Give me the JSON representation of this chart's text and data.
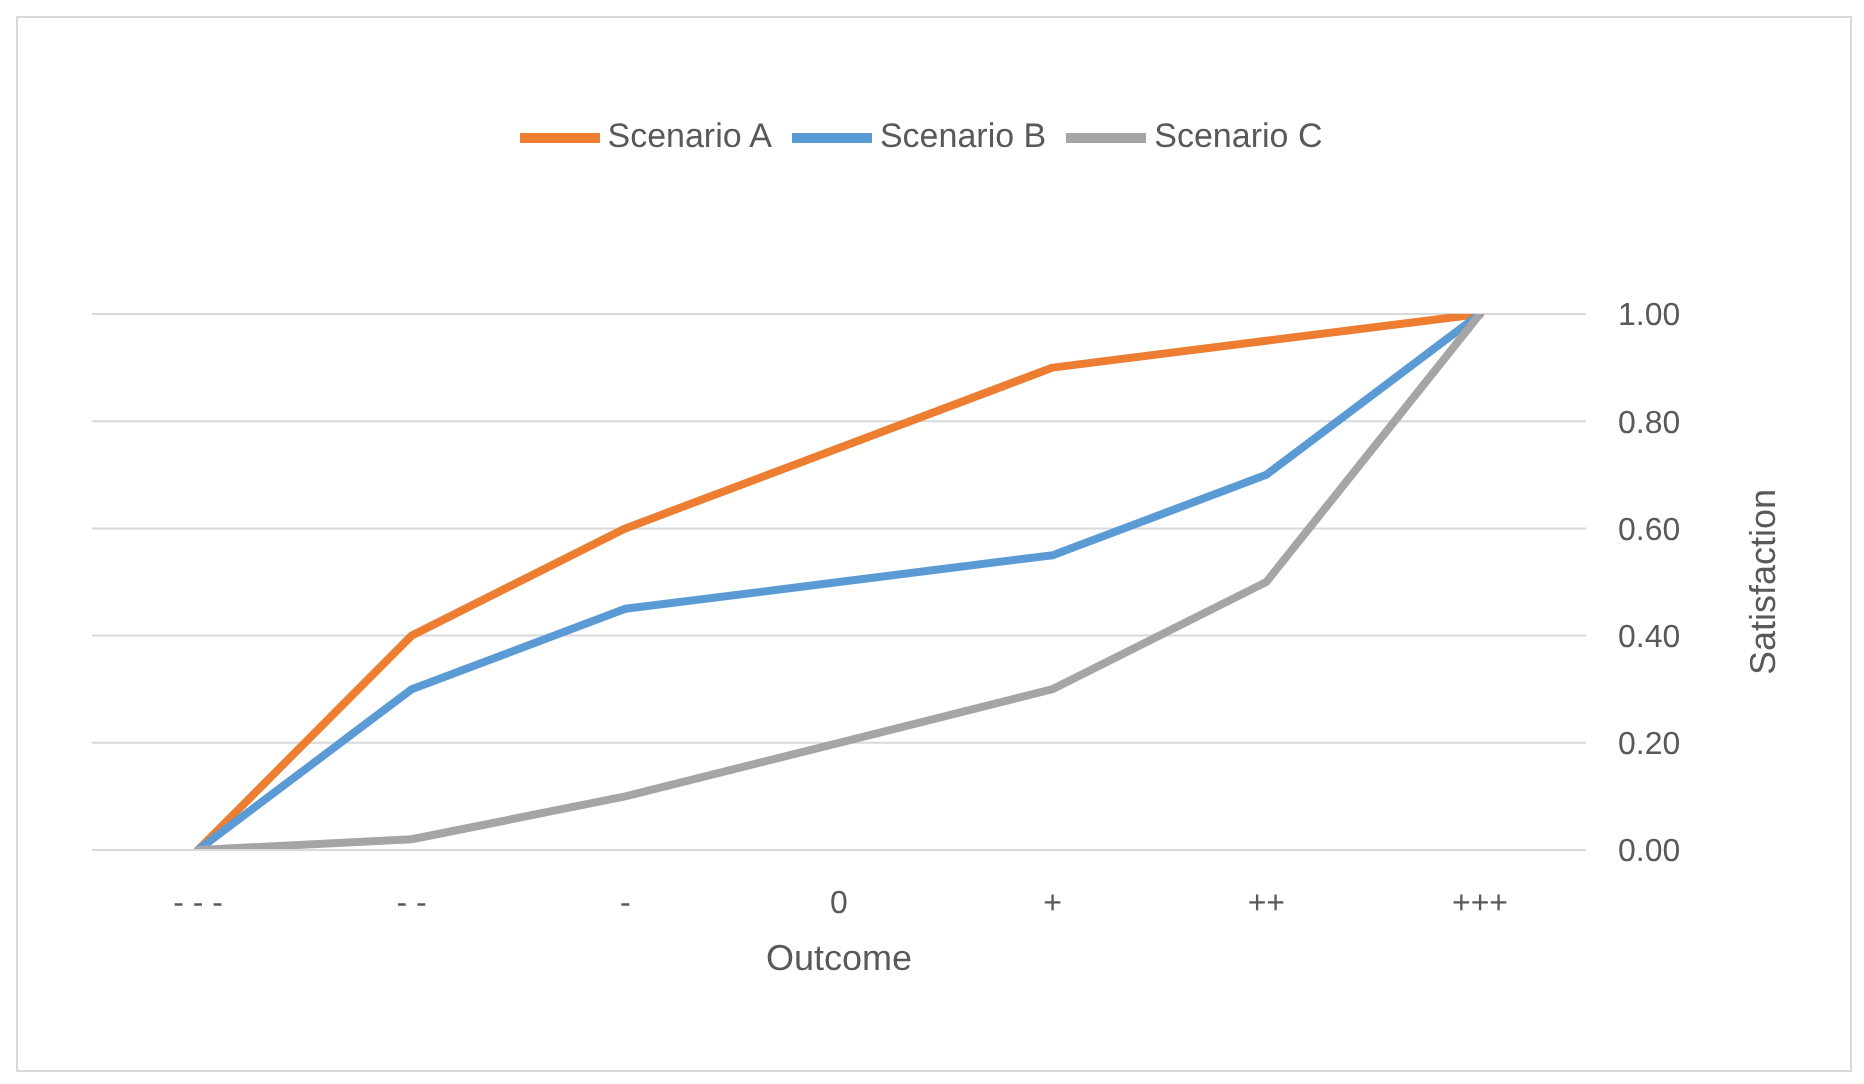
{
  "chart_data": {
    "type": "line",
    "xlabel": "Outcome",
    "ylabel": "Satisfaction",
    "categories": [
      "- - -",
      "- -",
      "-",
      "0",
      "+",
      "++",
      "+++"
    ],
    "series": [
      {
        "name": "Scenario A",
        "color": "#ed7d31",
        "values": [
          0,
          0.4,
          0.6,
          0.75,
          0.9,
          0.95,
          1.0
        ]
      },
      {
        "name": "Scenario B",
        "color": "#5b9bd5",
        "values": [
          0,
          0.3,
          0.45,
          0.5,
          0.55,
          0.7,
          1.0
        ]
      },
      {
        "name": "Scenario C",
        "color": "#a5a5a5",
        "values": [
          0,
          0.02,
          0.1,
          0.2,
          0.3,
          0.5,
          1.0
        ]
      }
    ],
    "ylim": [
      0,
      1
    ],
    "yticks": [
      {
        "value": 0,
        "label": "0.00"
      },
      {
        "value": 0.2,
        "label": "0.20"
      },
      {
        "value": 0.4,
        "label": "0.40"
      },
      {
        "value": 0.6,
        "label": "0.60"
      },
      {
        "value": 0.8,
        "label": "0.80"
      },
      {
        "value": 1,
        "label": "1.00"
      }
    ],
    "grid": "y",
    "legend": "top",
    "marker": "none",
    "line_style": "solid"
  }
}
